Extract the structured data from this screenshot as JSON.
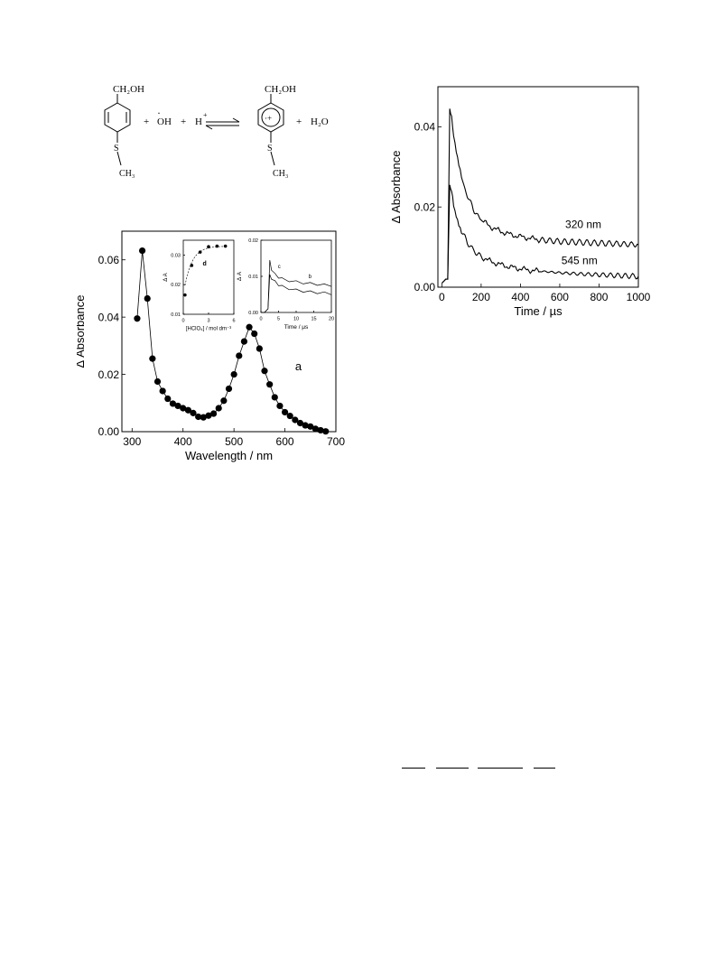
{
  "scheme": {
    "r_sub": "CH₂OH",
    "r_s": "S",
    "r_me": "CH₃",
    "plus1": "+",
    "oh": "OH",
    "radical_dot": "·",
    "plus2": "+",
    "h": "H",
    "h_charge": "+",
    "p_sub": "CH₂OH",
    "p_s": "S",
    "p_me": "CH₃",
    "p_ring_charge": "·+",
    "plus3": "+",
    "water": "H₂O"
  },
  "chart_data": [
    {
      "type": "scatter",
      "xlabel": "Wavelength / nm",
      "ylabel": "Δ Absorbance",
      "xlim": [
        280,
        700
      ],
      "ylim": [
        0,
        0.07
      ],
      "xticks": [
        "300",
        "400",
        "500",
        "600",
        "700"
      ],
      "yticks": [
        "0.00",
        "0.02",
        "0.04",
        "0.06"
      ],
      "annotation": "a",
      "series": [
        {
          "x": [
            310,
            320,
            330,
            340,
            350,
            360,
            370,
            380,
            390,
            400,
            410,
            420,
            430,
            440,
            450,
            460,
            470,
            480,
            490,
            500,
            510,
            520,
            530,
            540,
            550,
            560,
            570,
            580,
            590,
            600,
            610,
            620,
            630,
            640,
            650,
            660,
            670,
            680
          ],
          "y": [
            0.0395,
            0.0632,
            0.0465,
            0.0255,
            0.0175,
            0.0142,
            0.0115,
            0.0098,
            0.009,
            0.0082,
            0.0075,
            0.0065,
            0.0052,
            0.005,
            0.0056,
            0.0063,
            0.0082,
            0.0108,
            0.015,
            0.02,
            0.0265,
            0.0315,
            0.0365,
            0.0342,
            0.029,
            0.0212,
            0.0165,
            0.012,
            0.009,
            0.0068,
            0.0055,
            0.0041,
            0.003,
            0.0022,
            0.0018,
            0.001,
            0.0005,
            0.0001
          ]
        }
      ]
    },
    {
      "type": "scatter",
      "xlabel": "[HClO₄] / mol dm⁻³",
      "ylabel": "Δ A",
      "xlim": [
        0,
        6
      ],
      "ylim": [
        0.01,
        0.035
      ],
      "xticks": [
        "0",
        "3",
        "6"
      ],
      "yticks": [
        "0.01",
        "0.02",
        "0.03"
      ],
      "annotation": "d",
      "series": [
        {
          "x": [
            0.2,
            1.0,
            2.0,
            3.0,
            4.0,
            5.0
          ],
          "y": [
            0.0165,
            0.0265,
            0.031,
            0.0328,
            0.033,
            0.033
          ]
        }
      ]
    },
    {
      "type": "line",
      "xlabel": "Time / μs",
      "ylabel": "Δ A",
      "xlim": [
        0,
        20
      ],
      "ylim": [
        0,
        0.02
      ],
      "xticks": [
        "0",
        "5",
        "10",
        "15",
        "20"
      ],
      "yticks": [
        "0.00",
        "0.01",
        "0.02"
      ],
      "labels": [
        "c",
        "b"
      ],
      "series": [
        {
          "x": [
            0,
            1,
            2,
            2.5,
            3,
            4,
            5,
            6,
            8,
            10,
            12,
            14,
            16,
            18,
            20
          ],
          "y": [
            0,
            0,
            0.001,
            0.0145,
            0.012,
            0.0105,
            0.0098,
            0.0093,
            0.0088,
            0.0085,
            0.0082,
            0.008,
            0.0078,
            0.0076,
            0.0075
          ]
        },
        {
          "x": [
            0,
            1,
            2,
            2.5,
            3,
            4,
            5,
            6,
            8,
            10,
            12,
            14,
            16,
            18,
            20
          ],
          "y": [
            0,
            0,
            0.001,
            0.0105,
            0.0095,
            0.0085,
            0.0077,
            0.0072,
            0.0066,
            0.0062,
            0.0059,
            0.0057,
            0.0055,
            0.0054,
            0.0052
          ]
        }
      ]
    },
    {
      "type": "line",
      "xlabel": "Time / µs",
      "ylabel": "Δ Absorbance",
      "xlim": [
        -20,
        1000
      ],
      "ylim": [
        0,
        0.05
      ],
      "xticks": [
        "0",
        "200",
        "400",
        "600",
        "800",
        "1000"
      ],
      "yticks": [
        "0.00",
        "0.02",
        "0.04"
      ],
      "labels": [
        "320 nm",
        "545 nm"
      ],
      "series": [
        {
          "name": "320 nm",
          "x": [
            0,
            20,
            30,
            40,
            50,
            60,
            80,
            100,
            130,
            160,
            200,
            250,
            300,
            350,
            400,
            450,
            500,
            600,
            700,
            800,
            900,
            1000
          ],
          "y": [
            0.001,
            0.002,
            0.002,
            0.0445,
            0.042,
            0.038,
            0.032,
            0.0272,
            0.0228,
            0.0195,
            0.0168,
            0.015,
            0.0139,
            0.0131,
            0.0126,
            0.0122,
            0.0118,
            0.0114,
            0.0112,
            0.011,
            0.0108,
            0.0106
          ]
        },
        {
          "name": "545 nm",
          "x": [
            0,
            20,
            30,
            40,
            50,
            60,
            80,
            100,
            130,
            160,
            200,
            250,
            300,
            350,
            400,
            450,
            500,
            600,
            700,
            800,
            900,
            1000
          ],
          "y": [
            0.001,
            0.002,
            0.002,
            0.0255,
            0.0235,
            0.0205,
            0.017,
            0.014,
            0.0112,
            0.0093,
            0.0076,
            0.0064,
            0.0056,
            0.005,
            0.0046,
            0.0042,
            0.004,
            0.0036,
            0.0033,
            0.0031,
            0.0029,
            0.0027
          ]
        }
      ]
    }
  ]
}
